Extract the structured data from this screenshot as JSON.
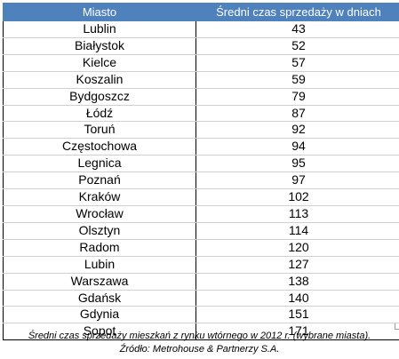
{
  "table": {
    "header": {
      "city": "Miasto",
      "days": "Średni czas sprzedaży w dniach"
    },
    "rows": [
      {
        "city": "Lublin",
        "days": "43"
      },
      {
        "city": "Białystok",
        "days": "52"
      },
      {
        "city": "Kielce",
        "days": "57"
      },
      {
        "city": "Koszalin",
        "days": "59"
      },
      {
        "city": "Bydgoszcz",
        "days": "79"
      },
      {
        "city": "Łódź",
        "days": "87"
      },
      {
        "city": "Toruń",
        "days": "92"
      },
      {
        "city": "Częstochowa",
        "days": "94"
      },
      {
        "city": "Legnica",
        "days": "95"
      },
      {
        "city": "Poznań",
        "days": "97"
      },
      {
        "city": "Kraków",
        "days": "102"
      },
      {
        "city": "Wrocław",
        "days": "113"
      },
      {
        "city": "Olsztyn",
        "days": "114"
      },
      {
        "city": "Radom",
        "days": "120"
      },
      {
        "city": "Lubin",
        "days": "127"
      },
      {
        "city": "Warszawa",
        "days": "138"
      },
      {
        "city": "Gdańsk",
        "days": "140"
      },
      {
        "city": "Gdynia",
        "days": "151"
      },
      {
        "city": "Sopot",
        "days": "171"
      }
    ]
  },
  "caption": {
    "line1": "Średni czas sprzedaży mieszkań z rynku wtórnego w 2012 r. (wybrane miasta).",
    "line2": "Źródło: Metrohouse & Partnerzy S.A."
  },
  "colors": {
    "header_bg": "#4f81bd",
    "header_text": "#ffffff"
  }
}
